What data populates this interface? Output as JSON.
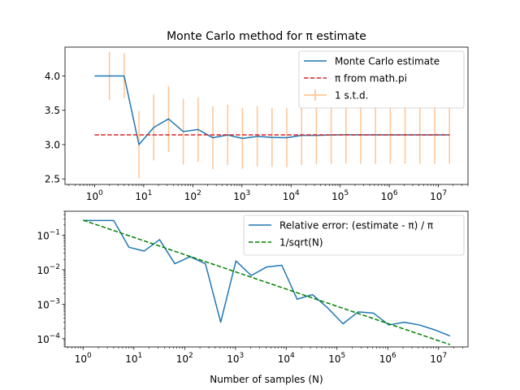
{
  "figure": {
    "background": "#ffffff"
  },
  "chart_data": [
    {
      "type": "line",
      "title": "Monte Carlo method for π estimate",
      "xlabel": "",
      "ylabel": "",
      "xscale": "log",
      "xlim": [
        0.25,
        40000000
      ],
      "ylim": [
        2.42,
        4.42
      ],
      "x_ticks": [
        {
          "v": 1,
          "m": "10",
          "e": "0"
        },
        {
          "v": 10,
          "m": "10",
          "e": "1"
        },
        {
          "v": 100,
          "m": "10",
          "e": "2"
        },
        {
          "v": 1000,
          "m": "10",
          "e": "3"
        },
        {
          "v": 10000,
          "m": "10",
          "e": "4"
        },
        {
          "v": 100000,
          "m": "10",
          "e": "5"
        },
        {
          "v": 1000000,
          "m": "10",
          "e": "6"
        },
        {
          "v": 10000000,
          "m": "10",
          "e": "7"
        }
      ],
      "y_ticks": [
        {
          "v": 2.5,
          "label": "2.5"
        },
        {
          "v": 3.0,
          "label": "3.0"
        },
        {
          "v": 3.5,
          "label": "3.5"
        },
        {
          "v": 4.0,
          "label": "4.0"
        }
      ],
      "grid": false,
      "legend_position": "top-right",
      "series": [
        {
          "name": "Monte Carlo estimate",
          "style": "solid",
          "color": "#1f77b4",
          "x": [
            1,
            2,
            4,
            8,
            16,
            32,
            64,
            128,
            256,
            512,
            1024,
            2048,
            4096,
            8192,
            16384,
            32768,
            65536,
            131072,
            262144,
            524288,
            1048576,
            2097152,
            4194304,
            8388608,
            16777216
          ],
          "y": [
            4.0,
            4.0,
            4.0,
            3.0,
            3.25,
            3.375,
            3.19,
            3.22,
            3.1,
            3.14,
            3.09,
            3.12,
            3.105,
            3.1,
            3.135,
            3.135,
            3.14,
            3.143,
            3.142,
            3.142,
            3.1416,
            3.142,
            3.1418,
            3.1415,
            3.1416
          ],
          "err": [
            0,
            0.35,
            0.33,
            0.49,
            0.48,
            0.48,
            0.48,
            0.47,
            0.46,
            0.44,
            0.44,
            0.44,
            0.43,
            0.43,
            0.43,
            0.42,
            0.42,
            0.42,
            0.42,
            0.42,
            0.42,
            0.42,
            0.42,
            0.42,
            0.42
          ]
        },
        {
          "name": "π from math.pi",
          "style": "dashed",
          "color": "#d62728",
          "x": [
            1,
            16777216
          ],
          "y": [
            3.14159,
            3.14159
          ]
        },
        {
          "name": "1 s.t.d.",
          "style": "errorbar",
          "color": "#ffbe86"
        }
      ]
    },
    {
      "type": "line",
      "title": "",
      "xlabel": "Number of samples (N)",
      "ylabel": "",
      "xscale": "log",
      "yscale": "log",
      "xlim": [
        0.44,
        38000000
      ],
      "ylim": [
        5.75e-05,
        0.5
      ],
      "x_ticks": [
        {
          "v": 1,
          "m": "10",
          "e": "0"
        },
        {
          "v": 10,
          "m": "10",
          "e": "1"
        },
        {
          "v": 100,
          "m": "10",
          "e": "2"
        },
        {
          "v": 1000,
          "m": "10",
          "e": "3"
        },
        {
          "v": 10000,
          "m": "10",
          "e": "4"
        },
        {
          "v": 100000,
          "m": "10",
          "e": "5"
        },
        {
          "v": 1000000,
          "m": "10",
          "e": "6"
        },
        {
          "v": 10000000,
          "m": "10",
          "e": "7"
        }
      ],
      "y_ticks": [
        {
          "v": 0.1,
          "m": "10",
          "e": "−1"
        },
        {
          "v": 0.01,
          "m": "10",
          "e": "−2"
        },
        {
          "v": 0.001,
          "m": "10",
          "e": "−3"
        },
        {
          "v": 0.0001,
          "m": "10",
          "e": "−4"
        }
      ],
      "grid": false,
      "legend_position": "top-right",
      "series": [
        {
          "name": "Relative error: (estimate - π) / π",
          "style": "solid",
          "color": "#1f77b4",
          "x": [
            1,
            2,
            4,
            8,
            16,
            32,
            64,
            128,
            256,
            512,
            1024,
            2048,
            4096,
            8192,
            16384,
            32768,
            65536,
            131072,
            262144,
            524288,
            1048576,
            2097152,
            4194304,
            8388608,
            16777216
          ],
          "y": [
            0.27,
            0.27,
            0.27,
            0.045,
            0.035,
            0.075,
            0.015,
            0.024,
            0.015,
            0.0003,
            0.018,
            0.0068,
            0.012,
            0.0135,
            0.0014,
            0.0019,
            0.00078,
            0.00027,
            0.0006,
            0.00055,
            0.00025,
            0.0003,
            0.00025,
            0.00018,
            0.00012
          ]
        },
        {
          "name": "1/sqrt(N)",
          "style": "dashed",
          "color": "#008000",
          "x": [
            1,
            16777216
          ],
          "y": [
            0.2755,
            6.73e-05
          ]
        }
      ]
    }
  ]
}
